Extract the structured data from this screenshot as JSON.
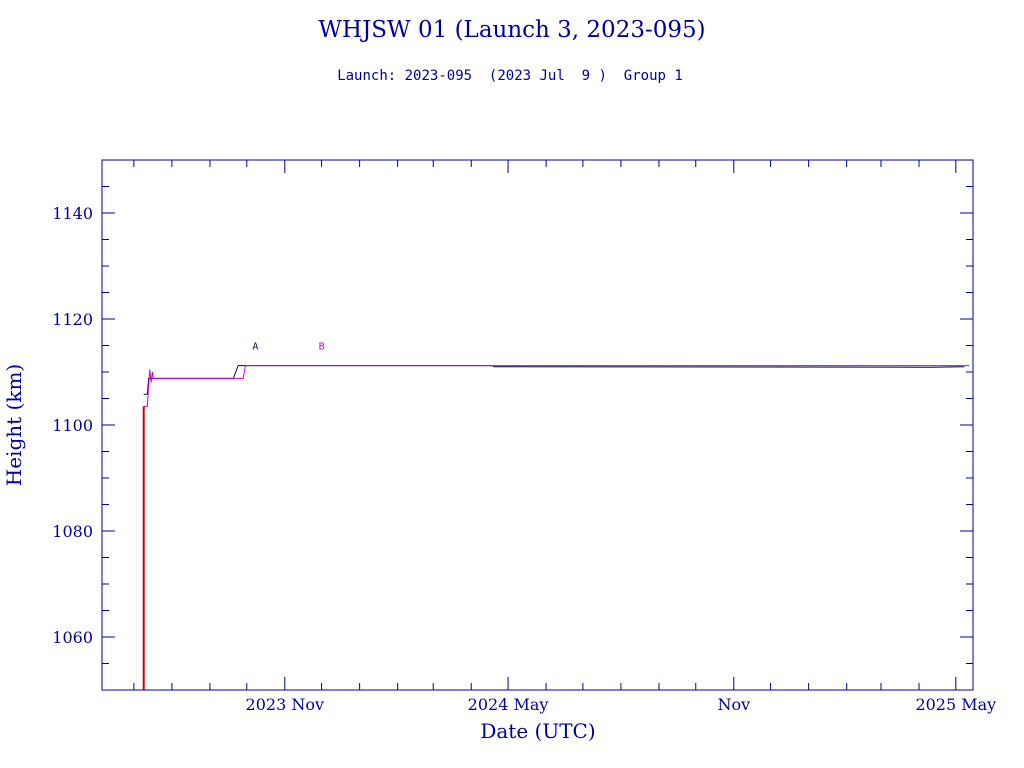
{
  "chart_data": {
    "type": "line",
    "title": "WHJSW 01 (Launch 3, 2023-095)",
    "subtitle": "Launch: 2023-095  (2023 Jul  9 )  Group 1",
    "xlabel": "Date (UTC)",
    "ylabel": "Height (km)",
    "ylim": [
      1050,
      1150
    ],
    "xlim": [
      "2023-06-05",
      "2025-05-15"
    ],
    "y_ticks": [
      1060,
      1080,
      1100,
      1120,
      1140
    ],
    "x_ticks": [
      {
        "date": "2023-11-01",
        "label": "2023 Nov"
      },
      {
        "date": "2024-05-01",
        "label": "2024 May"
      },
      {
        "date": "2024-11-01",
        "label": "Nov"
      },
      {
        "date": "2025-05-01",
        "label": "2025 May"
      }
    ],
    "grid": false,
    "legend": "none",
    "series": [
      {
        "name": "A",
        "color": "#000060",
        "label_at": {
          "date": "2023-10-08",
          "y": 1115
        },
        "points": [
          {
            "date": "2023-07-09",
            "y": 1105.8
          },
          {
            "date": "2023-07-12",
            "y": 1105.8
          },
          {
            "date": "2023-07-13",
            "y": 1108.8
          },
          {
            "date": "2023-09-20",
            "y": 1108.8
          },
          {
            "date": "2023-09-24",
            "y": 1111.2
          },
          {
            "date": "2024-04-18",
            "y": 1111.2
          },
          {
            "date": "2024-04-20",
            "y": 1111.0
          },
          {
            "date": "2025-04-10",
            "y": 1110.9
          },
          {
            "date": "2025-05-08",
            "y": 1111.0
          }
        ]
      },
      {
        "name": "B",
        "color": "#cc00cc",
        "label_at": {
          "date": "2023-12-01",
          "y": 1115
        },
        "points": [
          {
            "date": "2023-07-09",
            "y": 1103.5
          },
          {
            "date": "2023-07-12",
            "y": 1103.5
          },
          {
            "date": "2023-07-13",
            "y": 1107.5
          },
          {
            "date": "2023-07-14",
            "y": 1110.5
          },
          {
            "date": "2023-07-15",
            "y": 1108.0
          },
          {
            "date": "2023-07-16",
            "y": 1110.0
          },
          {
            "date": "2023-07-17",
            "y": 1108.8
          },
          {
            "date": "2023-09-28",
            "y": 1108.8
          },
          {
            "date": "2023-09-30",
            "y": 1111.2
          },
          {
            "date": "2025-05-12",
            "y": 1111.2
          }
        ]
      },
      {
        "name": "launch",
        "color": "#cc0000",
        "points": [
          {
            "date": "2023-07-09",
            "y": 1050
          },
          {
            "date": "2023-07-09",
            "y": 1067.0
          },
          {
            "date": "2023-07-09",
            "y": 1103.5
          }
        ]
      }
    ]
  }
}
